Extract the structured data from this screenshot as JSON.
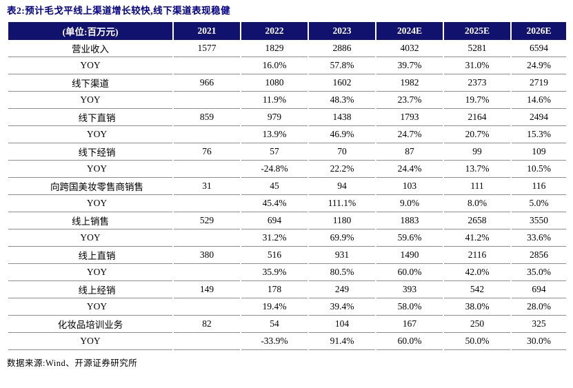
{
  "title": "表2:预计毛戈平线上渠道增长较快,线下渠道表现稳健",
  "table": {
    "unit_header": "(单位:百万元)",
    "year_headers": [
      "2021",
      "2022",
      "2023",
      "2024E",
      "2025E",
      "2026E"
    ],
    "rows": [
      {
        "label": "营业收入",
        "indent": 0,
        "values": [
          "1577",
          "1829",
          "2886",
          "4032",
          "5281",
          "6594"
        ]
      },
      {
        "label": "YOY",
        "indent": 0,
        "values": [
          "",
          "16.0%",
          "57.8%",
          "39.7%",
          "31.0%",
          "24.9%"
        ]
      },
      {
        "label": "线下渠道",
        "indent": 0,
        "values": [
          "966",
          "1080",
          "1602",
          "1982",
          "2373",
          "2719"
        ]
      },
      {
        "label": "YOY",
        "indent": 0,
        "values": [
          "",
          "11.9%",
          "48.3%",
          "23.7%",
          "19.7%",
          "14.6%"
        ]
      },
      {
        "label": "线下直销",
        "indent": 1,
        "values": [
          "859",
          "979",
          "1438",
          "1793",
          "2164",
          "2494"
        ]
      },
      {
        "label": "YOY",
        "indent": 1,
        "values": [
          "",
          "13.9%",
          "46.9%",
          "24.7%",
          "20.7%",
          "15.3%"
        ]
      },
      {
        "label": "线下经销",
        "indent": 1,
        "values": [
          "76",
          "57",
          "70",
          "87",
          "99",
          "109"
        ]
      },
      {
        "label": "YOY",
        "indent": 1,
        "values": [
          "",
          "-24.8%",
          "22.2%",
          "24.4%",
          "13.7%",
          "10.5%"
        ]
      },
      {
        "label": "向跨国美妆零售商销售",
        "indent": 1,
        "values": [
          "31",
          "45",
          "94",
          "103",
          "111",
          "116"
        ]
      },
      {
        "label": "YOY",
        "indent": 1,
        "values": [
          "",
          "45.4%",
          "111.1%",
          "9.0%",
          "8.0%",
          "5.0%"
        ]
      },
      {
        "label": "线上销售",
        "indent": 0,
        "values": [
          "529",
          "694",
          "1180",
          "1883",
          "2658",
          "3550"
        ]
      },
      {
        "label": "YOY",
        "indent": 0,
        "values": [
          "",
          "31.2%",
          "69.9%",
          "59.6%",
          "41.2%",
          "33.6%"
        ]
      },
      {
        "label": "线上直销",
        "indent": 1,
        "values": [
          "380",
          "516",
          "931",
          "1490",
          "2116",
          "2856"
        ]
      },
      {
        "label": "YOY",
        "indent": 1,
        "values": [
          "",
          "35.9%",
          "80.5%",
          "60.0%",
          "42.0%",
          "35.0%"
        ]
      },
      {
        "label": "线上经销",
        "indent": 1,
        "values": [
          "149",
          "178",
          "249",
          "393",
          "542",
          "694"
        ]
      },
      {
        "label": "YOY",
        "indent": 1,
        "values": [
          "",
          "19.4%",
          "39.4%",
          "58.0%",
          "38.0%",
          "28.0%"
        ]
      },
      {
        "label": "化妆品培训业务",
        "indent": 0,
        "values": [
          "82",
          "54",
          "104",
          "167",
          "250",
          "325"
        ]
      },
      {
        "label": "YOY",
        "indent": 0,
        "values": [
          "",
          "-33.9%",
          "91.4%",
          "60.0%",
          "50.0%",
          "30.0%"
        ]
      }
    ]
  },
  "footer": {
    "source": "数据来源:Wind、开源证券研究所"
  },
  "colors": {
    "header_bg": "#11116E",
    "title_text": "#00008B",
    "row_line": "#8C8C8C"
  }
}
